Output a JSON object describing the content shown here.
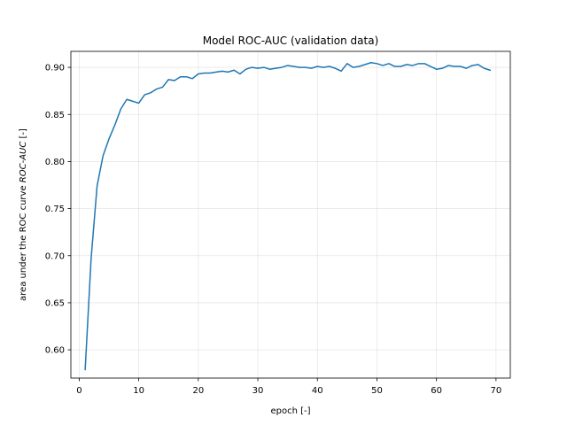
{
  "chart_data": {
    "type": "line",
    "title": "Model ROC-AUC (validation data)",
    "xlabel": "epoch [-]",
    "ylabel_prefix": "area under the ROC curve ",
    "ylabel_italic": "ROC-AUC",
    "ylabel_suffix": " [-]",
    "xlim": [
      -1.4,
      72.4
    ],
    "ylim": [
      0.57,
      0.917
    ],
    "xticks": [
      0,
      10,
      20,
      30,
      40,
      50,
      60,
      70
    ],
    "yticks": [
      0.6,
      0.65,
      0.7,
      0.75,
      0.8,
      0.85,
      0.9
    ],
    "xtick_labels": [
      "0",
      "10",
      "20",
      "30",
      "40",
      "50",
      "60",
      "70"
    ],
    "ytick_labels": [
      "0.60",
      "0.65",
      "0.70",
      "0.75",
      "0.80",
      "0.85",
      "0.90"
    ],
    "grid": true,
    "legend": false,
    "series": [
      {
        "color": "#1f77b4",
        "x": [
          1,
          2,
          3,
          4,
          5,
          6,
          7,
          8,
          9,
          10,
          11,
          12,
          13,
          14,
          15,
          16,
          17,
          18,
          19,
          20,
          21,
          22,
          23,
          24,
          25,
          26,
          27,
          28,
          29,
          30,
          31,
          32,
          33,
          34,
          35,
          36,
          37,
          38,
          39,
          40,
          41,
          42,
          43,
          44,
          45,
          46,
          47,
          48,
          49,
          50,
          51,
          52,
          53,
          54,
          55,
          56,
          57,
          58,
          59,
          60,
          61,
          62,
          63,
          64,
          65,
          66,
          67,
          68,
          69
        ],
        "y": [
          0.579,
          0.697,
          0.774,
          0.806,
          0.824,
          0.839,
          0.856,
          0.866,
          0.864,
          0.862,
          0.871,
          0.873,
          0.877,
          0.879,
          0.887,
          0.886,
          0.89,
          0.89,
          0.888,
          0.893,
          0.894,
          0.894,
          0.895,
          0.896,
          0.895,
          0.897,
          0.893,
          0.898,
          0.9,
          0.899,
          0.9,
          0.898,
          0.899,
          0.9,
          0.902,
          0.901,
          0.9,
          0.9,
          0.899,
          0.901,
          0.9,
          0.901,
          0.899,
          0.896,
          0.904,
          0.9,
          0.901,
          0.903,
          0.905,
          0.904,
          0.902,
          0.904,
          0.901,
          0.901,
          0.903,
          0.902,
          0.904,
          0.904,
          0.901,
          0.898,
          0.899,
          0.902,
          0.901,
          0.901,
          0.899,
          0.902,
          0.903,
          0.899,
          0.897
        ]
      }
    ]
  }
}
